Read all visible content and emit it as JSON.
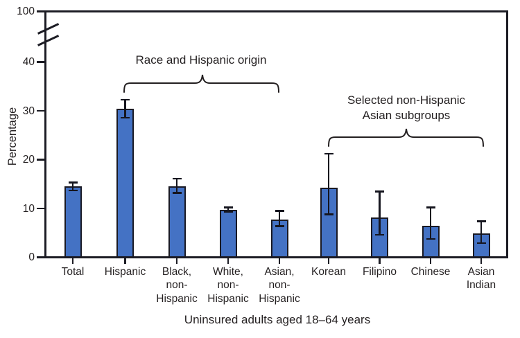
{
  "annotations": {
    "race_origin": {
      "label": "Race and Hispanic origin"
    },
    "asian_subgroups": {
      "lines": [
        "Selected non-Hispanic",
        "Asian subgroups"
      ]
    }
  },
  "chart_data": {
    "type": "bar",
    "title": "",
    "xlabel": "Uninsured adults aged 18–64 years",
    "ylabel": "Percentage",
    "categories": [
      "Total",
      "Hispanic",
      "Black, non-Hispanic",
      "White, non-Hispanic",
      "Asian, non-Hispanic",
      "Korean",
      "Filipino",
      "Chinese",
      "Asian Indian"
    ],
    "category_label_lines": [
      [
        "Total"
      ],
      [
        "Hispanic"
      ],
      [
        "Black,",
        "non-",
        "Hispanic"
      ],
      [
        "White,",
        "non-",
        "Hispanic"
      ],
      [
        "Asian,",
        "non-",
        "Hispanic"
      ],
      [
        "Korean"
      ],
      [
        "Filipino"
      ],
      [
        "Chinese"
      ],
      [
        "Asian",
        "Indian"
      ]
    ],
    "values": [
      14.5,
      30.4,
      14.6,
      9.7,
      7.8,
      14.3,
      8.2,
      6.5,
      4.9
    ],
    "ci_low": [
      13.7,
      28.6,
      13.2,
      9.3,
      6.4,
      8.8,
      4.6,
      3.8,
      2.9
    ],
    "ci_high": [
      15.3,
      32.3,
      16.1,
      10.2,
      9.5,
      21.2,
      13.5,
      10.2,
      7.4
    ],
    "error_bars": true,
    "y_ticks": [
      0,
      10,
      20,
      30,
      40,
      100
    ],
    "ylim": [
      0,
      100
    ],
    "axis_break_between": [
      40,
      100
    ],
    "grid": "off",
    "legend": "none",
    "bar_color": "#4472C4",
    "bar_border_color": "#191923",
    "axis_color": "#1c1c24",
    "groups": [
      {
        "label": "Race and Hispanic origin",
        "from": "Hispanic",
        "to": "Asian, non-Hispanic"
      },
      {
        "label": "Selected non-Hispanic Asian subgroups",
        "from": "Korean",
        "to": "Asian Indian"
      }
    ]
  }
}
